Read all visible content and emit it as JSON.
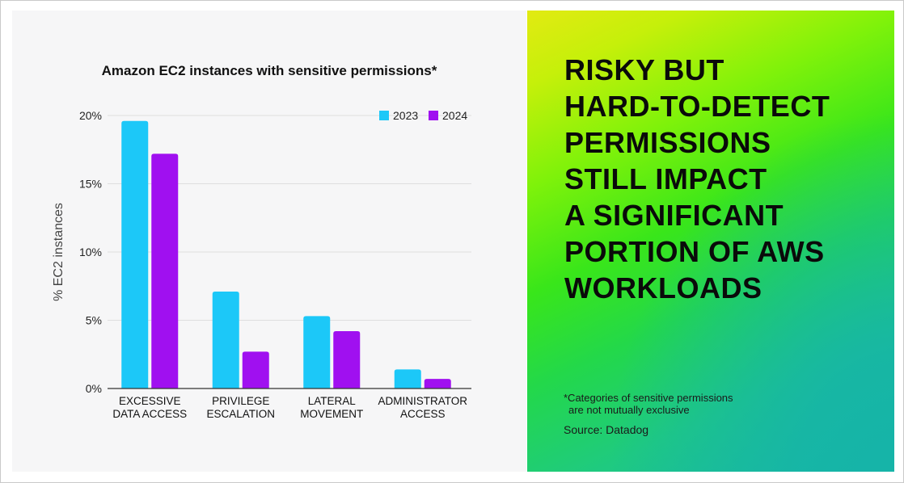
{
  "chart_data": {
    "type": "bar",
    "title": "Amazon EC2 instances with sensitive permissions*",
    "ylabel": "% EC2 instances",
    "xlabel": "",
    "ylim": [
      0,
      20
    ],
    "yticks": [
      "0%",
      "5%",
      "10%",
      "15%",
      "20%"
    ],
    "yticks_values": [
      0,
      5,
      10,
      15,
      20
    ],
    "grid": true,
    "legend_position": "top-right",
    "categories": [
      [
        "EXCESSIVE",
        "DATA ACCESS"
      ],
      [
        "PRIVILEGE",
        "ESCALATION"
      ],
      [
        "LATERAL",
        "MOVEMENT"
      ],
      [
        "ADMINISTRATOR",
        "ACCESS"
      ]
    ],
    "series": [
      {
        "name": "2023",
        "color": "#1cc8f8",
        "values": [
          19.6,
          7.1,
          5.3,
          1.4
        ]
      },
      {
        "name": "2024",
        "color": "#a010f0",
        "values": [
          17.2,
          2.7,
          4.2,
          0.7
        ]
      }
    ]
  },
  "headline": {
    "lines": [
      "RISKY BUT",
      "HARD-TO-DETECT",
      "PERMISSIONS",
      "STILL IMPACT",
      "A SIGNIFICANT",
      "PORTION OF AWS",
      "WORKLOADS"
    ]
  },
  "footnote": {
    "line1": "*Categories of sensitive permissions",
    "line2": "are not mutually exclusive"
  },
  "source": "Source: Datadog"
}
